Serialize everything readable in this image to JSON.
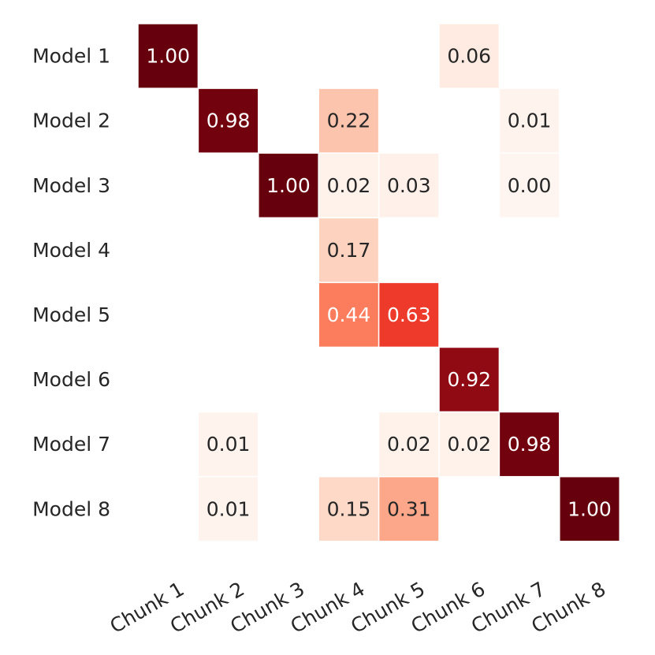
{
  "chart_data": {
    "type": "heatmap",
    "title": "",
    "xlabel": "",
    "ylabel": "",
    "rows": [
      "Model 1",
      "Model 2",
      "Model 3",
      "Model 4",
      "Model 5",
      "Model 6",
      "Model 7",
      "Model 8"
    ],
    "columns": [
      "Chunk 1",
      "Chunk 2",
      "Chunk 3",
      "Chunk 4",
      "Chunk 5",
      "Chunk 6",
      "Chunk 7",
      "Chunk 8"
    ],
    "values": [
      [
        1.0,
        null,
        null,
        null,
        null,
        0.06,
        null,
        null
      ],
      [
        null,
        0.98,
        null,
        0.22,
        null,
        null,
        0.01,
        null
      ],
      [
        null,
        null,
        1.0,
        0.02,
        0.03,
        null,
        0.0,
        null
      ],
      [
        null,
        null,
        null,
        0.17,
        null,
        null,
        null,
        null
      ],
      [
        null,
        null,
        null,
        0.44,
        0.63,
        null,
        null,
        null
      ],
      [
        null,
        null,
        null,
        null,
        null,
        0.92,
        null,
        null
      ],
      [
        null,
        0.01,
        null,
        null,
        0.02,
        0.02,
        0.98,
        null
      ],
      [
        null,
        0.01,
        null,
        0.15,
        0.31,
        null,
        null,
        1.0
      ]
    ],
    "labels": [
      [
        "1.00",
        null,
        null,
        null,
        null,
        "0.06",
        null,
        null
      ],
      [
        null,
        "0.98",
        null,
        "0.22",
        null,
        null,
        "0.01",
        null
      ],
      [
        null,
        null,
        "1.00",
        "0.02",
        "0.03",
        null,
        "0.00",
        null
      ],
      [
        null,
        null,
        null,
        "0.17",
        null,
        null,
        null,
        null
      ],
      [
        null,
        null,
        null,
        "0.44",
        "0.63",
        null,
        null,
        null
      ],
      [
        null,
        null,
        null,
        null,
        null,
        "0.92",
        null,
        null
      ],
      [
        null,
        "0.01",
        null,
        null,
        "0.02",
        "0.02",
        "0.98",
        null
      ],
      [
        null,
        "0.01",
        null,
        "0.15",
        "0.31",
        null,
        null,
        "1.00"
      ]
    ],
    "colormap": "Reds",
    "vmin": 0,
    "vmax": 1,
    "colorbar": false,
    "grid": false
  }
}
